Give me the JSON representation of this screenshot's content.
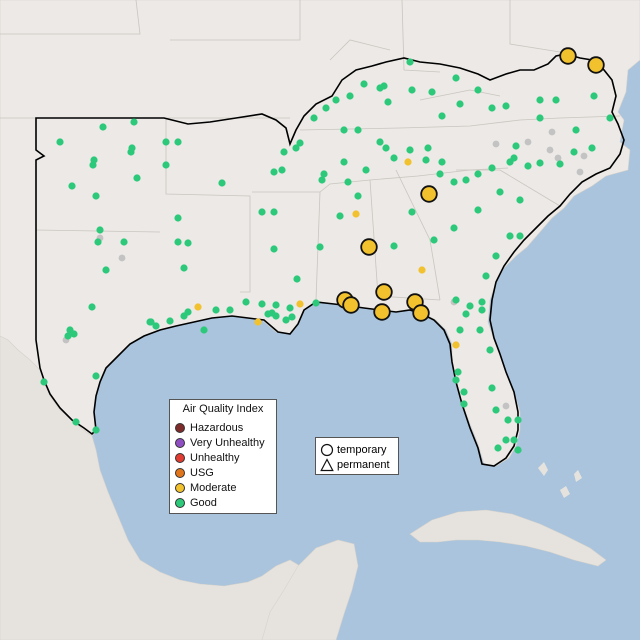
{
  "legend": {
    "title": "Air Quality Index",
    "items": [
      {
        "label": "Hazardous",
        "color": "#7e2b2b"
      },
      {
        "label": "Very Unhealthy",
        "color": "#8f4fc2"
      },
      {
        "label": "Unhealthy",
        "color": "#e03c31"
      },
      {
        "label": "USG",
        "color": "#e0751c"
      },
      {
        "label": "Moderate",
        "color": "#f2c12e"
      },
      {
        "label": "Good",
        "color": "#2dc97a"
      }
    ]
  },
  "shape_legend": {
    "items": [
      {
        "label": "temporary",
        "shape": "circle-outline-icon"
      },
      {
        "label": "permanent",
        "shape": "triangle-outline-icon"
      }
    ]
  },
  "colors": {
    "water": "#a9c4dc",
    "land": "#ece9e6",
    "land_outside": "#e6e3df",
    "good": "#2dc97a",
    "moderate": "#f2c12e",
    "no_data": "#c3c3c3"
  }
}
